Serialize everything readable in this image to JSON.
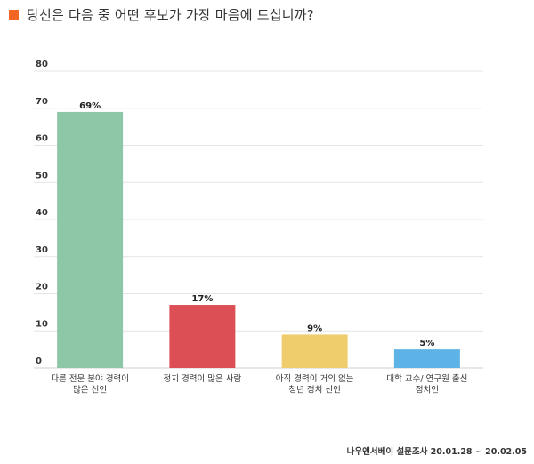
{
  "header": {
    "title": "당신은 다음 중 어떤 후보가 가장 마음에 드십니까?",
    "bullet_color": "#f26522"
  },
  "chart_data": {
    "type": "bar",
    "categories": [
      [
        "다른 전문 분야 경력이",
        "많은 신인"
      ],
      [
        "정치 경력이 많은 사람"
      ],
      [
        "아직 경력이 거의 없는",
        "청년 정치 신인"
      ],
      [
        "대학 교수/ 연구원 출신",
        "정치인"
      ]
    ],
    "values": [
      69,
      17,
      9,
      5
    ],
    "value_labels": [
      "69%",
      "17%",
      "9%",
      "5%"
    ],
    "colors": [
      "#8ec6a8",
      "#dc4f55",
      "#f0cd6c",
      "#5db3e6"
    ],
    "ylim": [
      0,
      80
    ],
    "yticks": [
      0,
      10,
      20,
      30,
      40,
      50,
      60,
      70,
      80
    ],
    "grid": true
  },
  "footer": {
    "source": "나우앤서베이 설문조사 20.01.28 ~ 20.02.05"
  }
}
